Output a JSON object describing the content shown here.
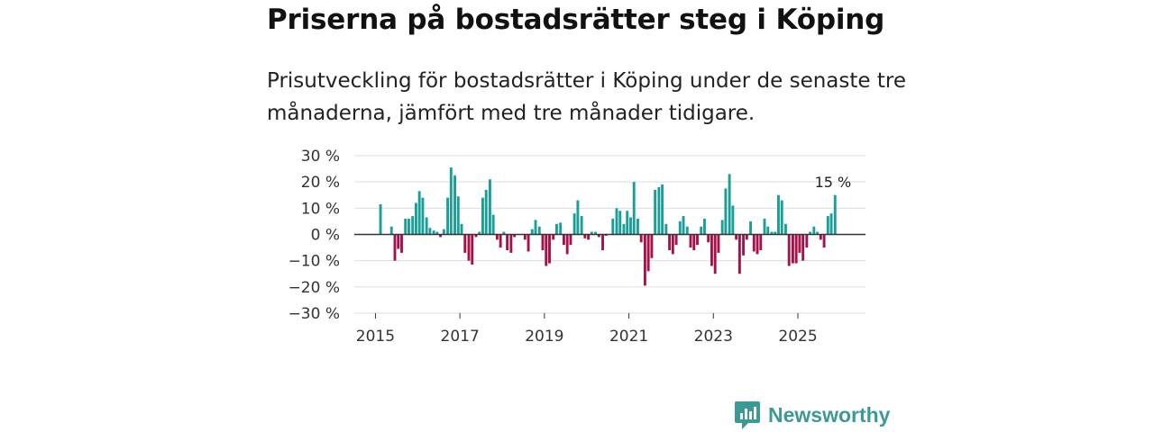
{
  "header": {
    "title": "Priserna på bostadsrätter steg i Köping",
    "subtitle": "Prisutveckling för bostadsrätter i Köping under de senaste tre månaderna, jämfört med tre månader tidigare."
  },
  "brand": {
    "name": "Newsworthy",
    "color": "#3b9a96"
  },
  "colors": {
    "positive": "#1a9e98",
    "negative": "#a5124a",
    "zero_line": "#333333",
    "grid": "#dddddd"
  },
  "chart_data": {
    "type": "bar",
    "title": "Priserna på bostadsrätter steg i Köping",
    "xlabel": "",
    "ylabel": "",
    "ylim": [
      -30,
      30
    ],
    "y_ticks": [
      30,
      20,
      10,
      0,
      -10,
      -20,
      -30
    ],
    "y_tick_labels": [
      "30 %",
      "20 %",
      "10 %",
      "0 %",
      "−10 %",
      "−20 %",
      "−30 %"
    ],
    "x_ticks": [
      2015,
      2017,
      2019,
      2021,
      2023,
      2025
    ],
    "x_tick_labels": [
      "2015",
      "2017",
      "2019",
      "2021",
      "2023",
      "2025"
    ],
    "x_range": [
      2014.5,
      2026.6
    ],
    "grid": true,
    "annotation": {
      "label": "15 %",
      "value": 15,
      "x": 2025.88
    },
    "series": [
      {
        "name": "Prisutveckling",
        "x": [
          2015.12,
          2015.38,
          2015.46,
          2015.54,
          2015.62,
          2015.71,
          2015.79,
          2015.88,
          2015.96,
          2016.04,
          2016.12,
          2016.21,
          2016.29,
          2016.38,
          2016.46,
          2016.54,
          2016.62,
          2016.71,
          2016.79,
          2016.88,
          2016.96,
          2017.04,
          2017.12,
          2017.21,
          2017.29,
          2017.38,
          2017.46,
          2017.54,
          2017.62,
          2017.71,
          2017.79,
          2017.88,
          2017.96,
          2018.04,
          2018.12,
          2018.21,
          2018.29,
          2018.54,
          2018.62,
          2018.71,
          2018.79,
          2018.88,
          2018.96,
          2019.04,
          2019.12,
          2019.21,
          2019.29,
          2019.38,
          2019.46,
          2019.54,
          2019.62,
          2019.71,
          2019.79,
          2019.88,
          2019.96,
          2020.04,
          2020.12,
          2020.21,
          2020.29,
          2020.38,
          2020.46,
          2020.62,
          2020.71,
          2020.79,
          2020.88,
          2020.96,
          2021.04,
          2021.12,
          2021.21,
          2021.29,
          2021.38,
          2021.46,
          2021.54,
          2021.62,
          2021.71,
          2021.79,
          2021.88,
          2021.96,
          2022.04,
          2022.12,
          2022.21,
          2022.29,
          2022.38,
          2022.46,
          2022.54,
          2022.62,
          2022.71,
          2022.79,
          2022.88,
          2022.96,
          2023.04,
          2023.12,
          2023.21,
          2023.29,
          2023.38,
          2023.46,
          2023.54,
          2023.62,
          2023.71,
          2023.79,
          2023.88,
          2023.96,
          2024.04,
          2024.12,
          2024.21,
          2024.29,
          2024.38,
          2024.46,
          2024.54,
          2024.62,
          2024.71,
          2024.79,
          2024.88,
          2024.96,
          2025.04,
          2025.12,
          2025.21,
          2025.29,
          2025.38,
          2025.46,
          2025.54,
          2025.62,
          2025.71,
          2025.79,
          2025.88
        ],
        "values": [
          11.5,
          3,
          -10,
          -5.5,
          -7,
          6,
          6,
          7,
          12,
          16.5,
          14,
          6.5,
          2.5,
          1.5,
          1,
          -1,
          2,
          14,
          25.5,
          22.5,
          14.5,
          4,
          -7,
          -10,
          -11.5,
          -1,
          1,
          14,
          17,
          21,
          7.5,
          -2,
          -5,
          1,
          -6,
          -7,
          -1,
          -2,
          -6.5,
          2,
          5.5,
          3,
          -6,
          -12,
          -11,
          -2,
          4,
          4.5,
          -4,
          -7.5,
          -4,
          8,
          13,
          7,
          -1.5,
          -2,
          1,
          1,
          -1,
          -6,
          -0.5,
          6,
          10,
          9,
          4,
          9,
          6.5,
          20,
          6,
          -3,
          -19.5,
          -14,
          -9,
          17,
          18,
          19,
          4,
          -6,
          -7.5,
          -4,
          5,
          7,
          3,
          -5,
          -6,
          -4,
          3,
          6,
          -3,
          -12,
          -15,
          -7,
          5.5,
          17.5,
          23,
          11,
          -2,
          -15,
          -8,
          -2,
          5,
          -6.5,
          -7.5,
          -6,
          6,
          3,
          1,
          1,
          15,
          13,
          4,
          -12,
          -11,
          -11,
          -7,
          -10,
          -5,
          1,
          3,
          1,
          -2,
          -5,
          7,
          8,
          15
        ]
      }
    ]
  }
}
